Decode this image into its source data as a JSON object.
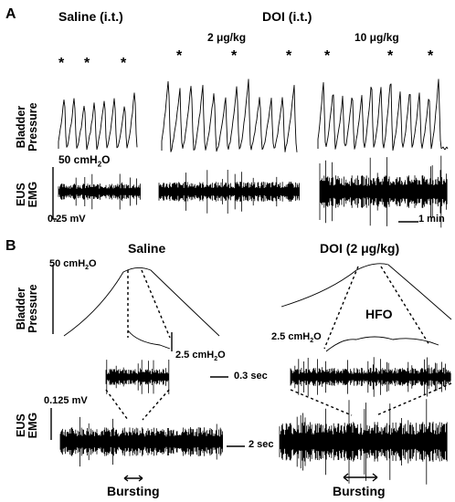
{
  "panel_a": {
    "letter": "A",
    "saline_title": "Saline (i.t.)",
    "doi_title": "DOI (i.t.)",
    "dose_2": "2 μg/kg",
    "dose_10": "10 μg/kg",
    "star": "*",
    "bladder_label_1": "Bladder",
    "bladder_label_2": "Pressure",
    "eus_label_1": "EUS",
    "eus_label_2": "EMG",
    "pressure_scale": "50 cmH",
    "pressure_scale_sub": "2",
    "pressure_scale_end": "O",
    "emg_scale": "0.25 mV",
    "time_scale": "1 min"
  },
  "panel_b": {
    "letter": "B",
    "saline_title": "Saline",
    "doi_title": "DOI (2 μg/kg)",
    "pressure_scale": "50 cmH",
    "pressure_scale_sub": "2",
    "pressure_scale_end": "O",
    "bladder_label_1": "Bladder",
    "bladder_label_2": "Pressure",
    "zoom_scale_saline": "2.5 cmH",
    "zoom_scale_doi": "2.5 cmH",
    "zoom_scale_sub": "2",
    "zoom_scale_end": "O",
    "hfo_label": "HFO",
    "fast_time_scale": "0.3 sec",
    "emg_scale": "0.125 mV",
    "eus_label_1": "EUS",
    "eus_label_2": "EMG",
    "slow_time_scale": "2 sec",
    "bursting_saline": "Bursting",
    "bursting_doi": "Bursting"
  }
}
